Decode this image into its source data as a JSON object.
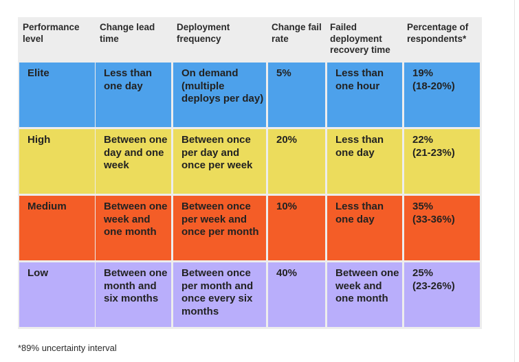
{
  "headers": [
    [
      "Performance",
      "level"
    ],
    [
      "Change lead",
      "time"
    ],
    [
      "Deployment",
      "frequency"
    ],
    [
      "Change fail",
      "rate"
    ],
    [
      "Failed",
      "deployment",
      "recovery time"
    ],
    [
      "Percentage of",
      "respondents*"
    ]
  ],
  "rows": [
    {
      "color": "#4da1eb",
      "cells": [
        [
          "Elite"
        ],
        [
          "Less than",
          "one day"
        ],
        [
          "On demand",
          "(multiple",
          "deploys per day)"
        ],
        [
          "5%"
        ],
        [
          "Less than",
          "one hour"
        ],
        [
          "19%",
          "(18-20%)"
        ]
      ]
    },
    {
      "color": "#ecdc5c",
      "cells": [
        [
          "High"
        ],
        [
          "Between one",
          "day and one",
          "week"
        ],
        [
          "Between once",
          "per day and",
          "once per week"
        ],
        [
          "20%"
        ],
        [
          "Less than",
          "one day"
        ],
        [
          "22%",
          "(21-23%)"
        ]
      ]
    },
    {
      "color": "#f45d27",
      "cells": [
        [
          "Medium"
        ],
        [
          "Between one",
          "week and",
          "one month"
        ],
        [
          "Between once",
          "per week and",
          "once per month"
        ],
        [
          "10%"
        ],
        [
          "Less than",
          "one day"
        ],
        [
          "35%",
          "(33-36%)"
        ]
      ]
    },
    {
      "color": "#b9aefb",
      "cells": [
        [
          "Low"
        ],
        [
          "Between one",
          "month and",
          "six months"
        ],
        [
          "Between once",
          "per month and",
          "once every six",
          "months"
        ],
        [
          "40%"
        ],
        [
          "Between one",
          "week and",
          "one month"
        ],
        [
          "25%",
          "(23-26%)"
        ]
      ]
    }
  ],
  "footnote": "*89% uncertainty interval"
}
